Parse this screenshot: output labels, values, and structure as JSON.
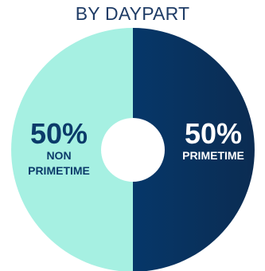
{
  "chart_data": {
    "type": "pie",
    "donut": true,
    "title": "BY DAYPART",
    "slices": [
      {
        "pct_label": "50%",
        "label_lines": [
          "PRIMETIME"
        ],
        "value": 50,
        "color": "#063769",
        "color_dark": "#0b2c52",
        "text_color": "#ffffff"
      },
      {
        "pct_label": "50%",
        "label_lines": [
          "NON",
          "PRIMETIME"
        ],
        "value": 50,
        "color": "#a6f0e2",
        "color_dark": "#a6f0e2",
        "text_color": "#0b3b6a"
      }
    ]
  }
}
